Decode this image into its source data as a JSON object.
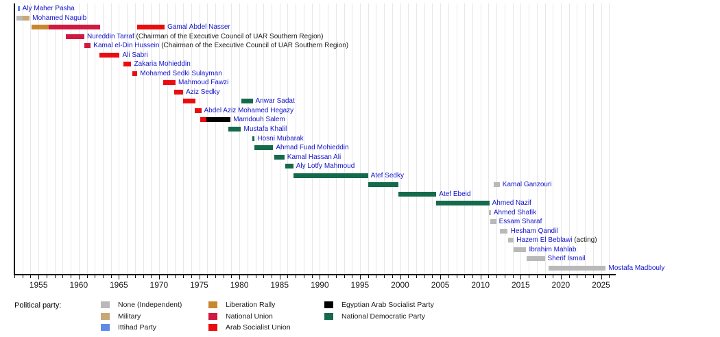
{
  "party_colors": {
    "None (Independent)": "#b9b9b9",
    "Military": "#c7a876",
    "Ittihad Party": "#5c8ce6",
    "Liberation Rally": "#c8872e",
    "National Union": "#d01940",
    "Arab Socialist Union": "#ea0d10",
    "Egyptian Arab Socialist Party": "#000000",
    "National Democratic Party": "#156a4b"
  },
  "text_colors": {
    "name_link": "#1212cc",
    "annotation": "#1a1a1a"
  },
  "legend": {
    "title": "Political party:",
    "columns": [
      [
        "None (Independent)",
        "Military",
        "Ittihad Party"
      ],
      [
        "Liberation Rally",
        "National Union",
        "Arab Socialist Union"
      ],
      [
        "Egyptian Arab Socialist Party",
        "National Democratic Party"
      ]
    ]
  },
  "chart_data": {
    "type": "bar",
    "variant": "timeline-gantt",
    "xlabel": "",
    "ylabel": "",
    "x_axis": {
      "min": 1952,
      "max": 2026.75,
      "major_ticks": [
        1955,
        1960,
        1965,
        1970,
        1975,
        1980,
        1985,
        1990,
        1995,
        2000,
        2005,
        2010,
        2015,
        2020,
        2025
      ],
      "minor_tick_step": 1,
      "grid": true
    },
    "rows": [
      {
        "name": "Aly Maher Pasha",
        "suffix": "",
        "segments": [
          {
            "party": "Ittihad Party",
            "start": 1952.4,
            "end": 1952.65
          }
        ]
      },
      {
        "name": "Mohamed Naguib",
        "suffix": "",
        "segments": [
          {
            "party": "None (Independent)",
            "start": 1952.25,
            "end": 1953.0
          },
          {
            "party": "Military",
            "start": 1953.0,
            "end": 1953.9
          }
        ]
      },
      {
        "name": "Gamal Abdel Nasser",
        "suffix": "",
        "segments": [
          {
            "party": "Liberation Rally",
            "start": 1954.1,
            "end": 1956.3
          },
          {
            "party": "National Union",
            "start": 1956.3,
            "end": 1962.7
          },
          {
            "party": "Arab Socialist Union",
            "start": 1967.25,
            "end": 1970.7
          }
        ]
      },
      {
        "name": "Nureddin Tarraf",
        "suffix": "(Chairman of the Executive Council of UAR Southern Region)",
        "segments": [
          {
            "party": "National Union",
            "start": 1958.4,
            "end": 1960.7
          }
        ]
      },
      {
        "name": "Kamal el-Din Hussein",
        "suffix": "(Chairman of the Executive Council of UAR Southern Region)",
        "segments": [
          {
            "party": "National Union",
            "start": 1960.7,
            "end": 1961.5
          }
        ]
      },
      {
        "name": "Ali Sabri",
        "suffix": "",
        "segments": [
          {
            "party": "Arab Socialist Union",
            "start": 1962.55,
            "end": 1965.1
          }
        ]
      },
      {
        "name": "Zakaria Mohieddin",
        "suffix": "",
        "segments": [
          {
            "party": "Arab Socialist Union",
            "start": 1965.55,
            "end": 1966.55
          }
        ]
      },
      {
        "name": "Mohamed Sedki Sulayman",
        "suffix": "",
        "segments": [
          {
            "party": "Arab Socialist Union",
            "start": 1966.65,
            "end": 1967.3
          }
        ]
      },
      {
        "name": "Mahmoud Fawzi",
        "suffix": "",
        "segments": [
          {
            "party": "Arab Socialist Union",
            "start": 1970.5,
            "end": 1972.05
          }
        ]
      },
      {
        "name": "Aziz Sedky",
        "suffix": "",
        "segments": [
          {
            "party": "Arab Socialist Union",
            "start": 1971.9,
            "end": 1973.0
          }
        ]
      },
      {
        "name": "Anwar Sadat",
        "suffix": "",
        "segments": [
          {
            "party": "Arab Socialist Union",
            "start": 1973.0,
            "end": 1974.55
          },
          {
            "party": "National Democratic Party",
            "start": 1980.2,
            "end": 1981.65
          }
        ]
      },
      {
        "name": "Abdel Aziz Mohamed Hegazy",
        "suffix": "",
        "segments": [
          {
            "party": "Arab Socialist Union",
            "start": 1974.4,
            "end": 1975.25
          }
        ]
      },
      {
        "name": "Mamdouh Salem",
        "suffix": "",
        "segments": [
          {
            "party": "Arab Socialist Union",
            "start": 1975.1,
            "end": 1975.9
          },
          {
            "party": "Egyptian Arab Socialist Party",
            "start": 1975.9,
            "end": 1978.9
          }
        ]
      },
      {
        "name": "Mustafa Khalil",
        "suffix": "",
        "segments": [
          {
            "party": "National Democratic Party",
            "start": 1978.6,
            "end": 1980.2
          }
        ]
      },
      {
        "name": "Hosni Mubarak",
        "suffix": "",
        "segments": [
          {
            "party": "National Democratic Party",
            "start": 1981.6,
            "end": 1981.9
          }
        ]
      },
      {
        "name": "Ahmad Fuad Mohieddin",
        "suffix": "",
        "segments": [
          {
            "party": "National Democratic Party",
            "start": 1981.9,
            "end": 1984.2
          }
        ]
      },
      {
        "name": "Kamal Hassan Ali",
        "suffix": "",
        "segments": [
          {
            "party": "National Democratic Party",
            "start": 1984.3,
            "end": 1985.6
          }
        ]
      },
      {
        "name": "Aly Lotfy Mahmoud",
        "suffix": "",
        "segments": [
          {
            "party": "National Democratic Party",
            "start": 1985.7,
            "end": 1986.7
          }
        ]
      },
      {
        "name": "Atef Sedky",
        "suffix": "",
        "segments": [
          {
            "party": "National Democratic Party",
            "start": 1986.7,
            "end": 1996.0
          }
        ]
      },
      {
        "name": "Kamal Ganzouri",
        "suffix": "",
        "segments": [
          {
            "party": "National Democratic Party",
            "start": 1996.0,
            "end": 1999.8
          },
          {
            "party": "None (Independent)",
            "start": 2011.6,
            "end": 2012.4
          }
        ]
      },
      {
        "name": "Atef Ebeid",
        "suffix": "",
        "segments": [
          {
            "party": "National Democratic Party",
            "start": 1999.8,
            "end": 2004.5
          }
        ]
      },
      {
        "name": "Ahmed Nazif",
        "suffix": "",
        "segments": [
          {
            "party": "National Democratic Party",
            "start": 2004.5,
            "end": 2011.1
          }
        ]
      },
      {
        "name": "Ahmed Shafik",
        "suffix": "",
        "segments": [
          {
            "party": "None (Independent)",
            "start": 2011.05,
            "end": 2011.3
          }
        ]
      },
      {
        "name": "Essam Sharaf",
        "suffix": "",
        "segments": [
          {
            "party": "None (Independent)",
            "start": 2011.2,
            "end": 2011.95
          }
        ]
      },
      {
        "name": "Hesham Qandil",
        "suffix": "",
        "segments": [
          {
            "party": "None (Independent)",
            "start": 2012.4,
            "end": 2013.4
          }
        ]
      },
      {
        "name": "Hazem El Beblawi",
        "suffix": "(acting)",
        "segments": [
          {
            "party": "None (Independent)",
            "start": 2013.4,
            "end": 2014.15
          }
        ]
      },
      {
        "name": "Ibrahim Mahlab",
        "suffix": "",
        "segments": [
          {
            "party": "None (Independent)",
            "start": 2014.15,
            "end": 2015.7
          }
        ]
      },
      {
        "name": "Sherif Ismail",
        "suffix": "",
        "segments": [
          {
            "party": "None (Independent)",
            "start": 2015.7,
            "end": 2018.0
          }
        ]
      },
      {
        "name": "Mostafa Madbouly",
        "suffix": "",
        "segments": [
          {
            "party": "None (Independent)",
            "start": 2018.5,
            "end": 2025.6
          }
        ]
      }
    ]
  }
}
